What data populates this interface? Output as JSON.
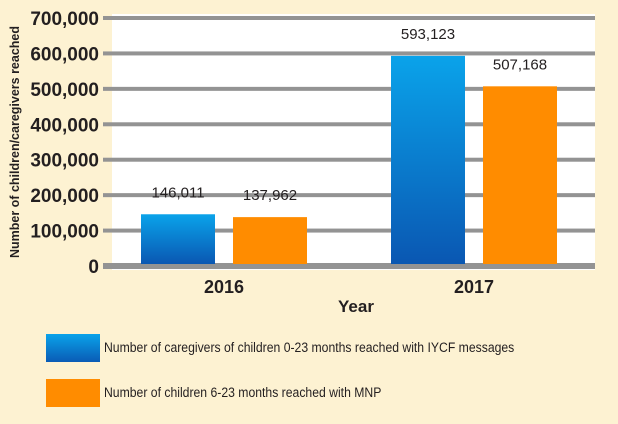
{
  "chart_data": {
    "type": "bar",
    "title": "",
    "xlabel": "Year",
    "ylabel": "Number of children/caregivers reached",
    "ylim": [
      0,
      700000
    ],
    "yticks": [
      0,
      100000,
      200000,
      300000,
      400000,
      500000,
      600000,
      700000
    ],
    "ytick_labels": [
      "0",
      "100,000",
      "200,000",
      "300,000",
      "400,000",
      "500,000",
      "600,000",
      "700,000"
    ],
    "grid": true,
    "legend_position": "bottom",
    "categories": [
      "2016",
      "2017"
    ],
    "series": [
      {
        "name": "Number of caregivers of children 0-23 months reached with IYCF messages",
        "values": [
          146011,
          593123
        ],
        "value_labels": [
          "146,011",
          "593,123"
        ],
        "color": "#0a7fd4"
      },
      {
        "name": "Number of children 6-23 months reached with MNP",
        "values": [
          137962,
          507168
        ],
        "value_labels": [
          "137,962",
          "507,168"
        ],
        "color": "#ff8c00"
      }
    ]
  },
  "colors": {
    "background": "#fdf2d2",
    "plot_background": "#ffffff",
    "gridline": "#939393",
    "blue_top": "#0aa3ea",
    "blue_bottom": "#0a5bb5",
    "orange": "#ff8c00"
  }
}
